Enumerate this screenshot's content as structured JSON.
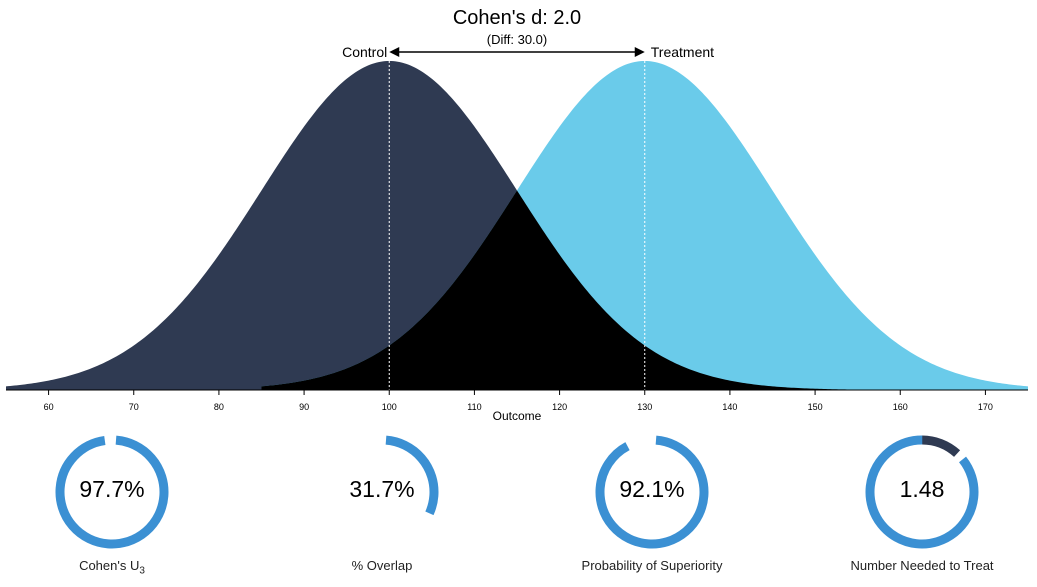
{
  "chart_data": {
    "type": "area",
    "title": "Cohen's d: 2.0",
    "subtitle": "(Diff: 30.0)",
    "xlabel": "Outcome",
    "x_ticks": [
      60,
      70,
      80,
      90,
      100,
      110,
      120,
      130,
      140,
      150,
      160,
      170
    ],
    "xlim": [
      55,
      175
    ],
    "sd": 15,
    "series": [
      {
        "name": "Control",
        "mean": 100,
        "color": "#2f3a52",
        "x_range": [
          55,
          175
        ]
      },
      {
        "name": "Treatment",
        "mean": 130,
        "color": "#6acbea",
        "x_range": [
          85,
          175
        ]
      }
    ],
    "overlap_color": "#000000",
    "mean_line_color": "#ffffff",
    "effect_metrics": [
      {
        "value_text": "97.7%",
        "label": "Cohen's U",
        "label_sub": "3",
        "fraction": 0.977,
        "color": "#3b90d3"
      },
      {
        "value_text": "31.7%",
        "label": "% Overlap",
        "label_sub": "",
        "fraction": 0.317,
        "color": "#3b90d3"
      },
      {
        "value_text": "92.1%",
        "label": "Probability of Superiority",
        "label_sub": "",
        "fraction": 0.921,
        "color": "#3b90d3"
      },
      {
        "value_text": "1.48",
        "label": "Number Needed to Treat",
        "label_sub": "",
        "fraction": 0.87,
        "color": "#3b90d3",
        "remainder_color": "#2f3a52"
      }
    ]
  }
}
